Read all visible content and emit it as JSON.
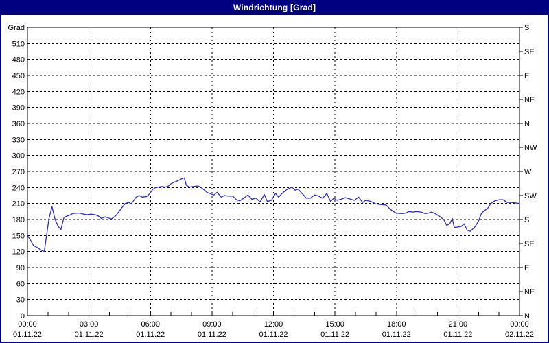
{
  "window": {
    "title": "Windrichtung [Grad]"
  },
  "colors": {
    "titlebar_bg": "#000080",
    "titlebar_text": "#ffffff",
    "window_border": "#000080",
    "plot_bg": "#ffffff",
    "grid": "#000000",
    "axis": "#000000",
    "line": "#2b2bc4"
  },
  "chart_data": {
    "type": "line",
    "title": "Windrichtung [Grad]",
    "ylabel": "Grad",
    "ylim": [
      0,
      540
    ],
    "y_left_tick_step": 30,
    "y_left_ticks": [
      0,
      30,
      60,
      90,
      120,
      150,
      180,
      210,
      240,
      270,
      300,
      330,
      360,
      390,
      420,
      450,
      480,
      510
    ],
    "y_right_ticks": [
      {
        "value": 0,
        "label": "N"
      },
      {
        "value": 45,
        "label": "NE"
      },
      {
        "value": 90,
        "label": "E"
      },
      {
        "value": 135,
        "label": "SE"
      },
      {
        "value": 180,
        "label": "S"
      },
      {
        "value": 225,
        "label": "SW"
      },
      {
        "value": 270,
        "label": "W"
      },
      {
        "value": 315,
        "label": "NW"
      },
      {
        "value": 360,
        "label": "N"
      },
      {
        "value": 405,
        "label": "NE"
      },
      {
        "value": 450,
        "label": "E"
      },
      {
        "value": 495,
        "label": "SE"
      },
      {
        "value": 540,
        "label": "S"
      }
    ],
    "xlim_hours": [
      0,
      24
    ],
    "x_minor_tick_hours": 1,
    "x_ticks": [
      {
        "hour": 0,
        "time": "00:00",
        "date": "01.11.22"
      },
      {
        "hour": 3,
        "time": "03:00",
        "date": "01.11.22"
      },
      {
        "hour": 6,
        "time": "06:00",
        "date": "01.11.22"
      },
      {
        "hour": 9,
        "time": "09:00",
        "date": "01.11.22"
      },
      {
        "hour": 12,
        "time": "12:00",
        "date": "01.11.22"
      },
      {
        "hour": 15,
        "time": "15:00",
        "date": "01.11.22"
      },
      {
        "hour": 18,
        "time": "18:00",
        "date": "01.11.22"
      },
      {
        "hour": 21,
        "time": "21:00",
        "date": "01.11.22"
      },
      {
        "hour": 24,
        "time": "00:00",
        "date": "02.11.22"
      }
    ],
    "grid": true,
    "legend": "none",
    "series": [
      {
        "name": "Windrichtung",
        "color": "#2b2bc4",
        "points": [
          [
            0,
            150
          ],
          [
            0.15,
            141
          ],
          [
            0.3,
            131
          ],
          [
            0.5,
            127
          ],
          [
            0.7,
            122
          ],
          [
            0.82,
            120
          ],
          [
            0.95,
            155
          ],
          [
            1.05,
            182
          ],
          [
            1.2,
            204
          ],
          [
            1.35,
            180
          ],
          [
            1.5,
            167
          ],
          [
            1.63,
            161
          ],
          [
            1.78,
            184
          ],
          [
            1.9,
            186
          ],
          [
            2.05,
            188
          ],
          [
            2.2,
            191
          ],
          [
            2.4,
            192
          ],
          [
            2.55,
            192
          ],
          [
            2.75,
            190
          ],
          [
            2.9,
            189
          ],
          [
            3.1,
            190
          ],
          [
            3.3,
            189
          ],
          [
            3.45,
            187
          ],
          [
            3.6,
            182
          ],
          [
            3.8,
            185
          ],
          [
            3.95,
            183
          ],
          [
            4.1,
            181
          ],
          [
            4.3,
            187
          ],
          [
            4.45,
            194
          ],
          [
            4.6,
            202
          ],
          [
            4.77,
            210
          ],
          [
            4.95,
            212
          ],
          [
            5.05,
            209
          ],
          [
            5.15,
            214
          ],
          [
            5.3,
            222
          ],
          [
            5.45,
            225
          ],
          [
            5.6,
            222
          ],
          [
            5.8,
            223
          ],
          [
            5.95,
            228
          ],
          [
            6.1,
            236
          ],
          [
            6.25,
            240
          ],
          [
            6.4,
            241
          ],
          [
            6.55,
            242
          ],
          [
            6.7,
            241
          ],
          [
            6.85,
            242
          ],
          [
            7.0,
            247
          ],
          [
            7.15,
            250
          ],
          [
            7.3,
            252
          ],
          [
            7.5,
            256
          ],
          [
            7.65,
            258
          ],
          [
            7.75,
            244
          ],
          [
            7.9,
            241
          ],
          [
            8.1,
            242
          ],
          [
            8.3,
            243
          ],
          [
            8.45,
            241
          ],
          [
            8.6,
            236
          ],
          [
            8.75,
            231
          ],
          [
            8.95,
            228
          ],
          [
            9.1,
            226
          ],
          [
            9.25,
            231
          ],
          [
            9.45,
            222
          ],
          [
            9.6,
            225
          ],
          [
            9.8,
            224
          ],
          [
            10.0,
            224
          ],
          [
            10.2,
            217
          ],
          [
            10.35,
            215
          ],
          [
            10.55,
            220
          ],
          [
            10.75,
            226
          ],
          [
            10.95,
            218
          ],
          [
            11.15,
            220
          ],
          [
            11.35,
            213
          ],
          [
            11.55,
            227
          ],
          [
            11.7,
            214
          ],
          [
            11.9,
            216
          ],
          [
            12.1,
            229
          ],
          [
            12.25,
            222
          ],
          [
            12.45,
            230
          ],
          [
            12.65,
            236
          ],
          [
            12.9,
            241
          ],
          [
            13.05,
            235
          ],
          [
            13.2,
            237
          ],
          [
            13.4,
            229
          ],
          [
            13.6,
            220
          ],
          [
            13.8,
            220
          ],
          [
            14.0,
            226
          ],
          [
            14.2,
            224
          ],
          [
            14.4,
            220
          ],
          [
            14.6,
            229
          ],
          [
            14.78,
            214
          ],
          [
            14.95,
            220
          ],
          [
            15.1,
            216
          ],
          [
            15.3,
            218
          ],
          [
            15.5,
            221
          ],
          [
            15.7,
            219
          ],
          [
            15.95,
            216
          ],
          [
            16.15,
            222
          ],
          [
            16.35,
            212
          ],
          [
            16.5,
            216
          ],
          [
            16.75,
            214
          ],
          [
            17.0,
            209
          ],
          [
            17.25,
            208
          ],
          [
            17.5,
            207
          ],
          [
            17.7,
            199
          ],
          [
            17.85,
            195
          ],
          [
            18.0,
            192
          ],
          [
            18.25,
            191
          ],
          [
            18.45,
            192
          ],
          [
            18.6,
            195
          ],
          [
            18.8,
            194
          ],
          [
            19.0,
            195
          ],
          [
            19.2,
            194
          ],
          [
            19.4,
            191
          ],
          [
            19.55,
            192
          ],
          [
            19.7,
            194
          ],
          [
            19.85,
            192
          ],
          [
            20.1,
            186
          ],
          [
            20.3,
            180
          ],
          [
            20.45,
            169
          ],
          [
            20.6,
            172
          ],
          [
            20.72,
            182
          ],
          [
            20.82,
            165
          ],
          [
            21.0,
            166
          ],
          [
            21.15,
            167
          ],
          [
            21.3,
            172
          ],
          [
            21.45,
            160
          ],
          [
            21.6,
            158
          ],
          [
            21.8,
            165
          ],
          [
            22.0,
            177
          ],
          [
            22.15,
            192
          ],
          [
            22.3,
            197
          ],
          [
            22.45,
            201
          ],
          [
            22.6,
            210
          ],
          [
            22.8,
            215
          ],
          [
            23.0,
            217
          ],
          [
            23.2,
            217
          ],
          [
            23.4,
            212
          ],
          [
            23.6,
            212
          ],
          [
            23.8,
            211
          ],
          [
            24.0,
            210
          ]
        ]
      }
    ]
  }
}
